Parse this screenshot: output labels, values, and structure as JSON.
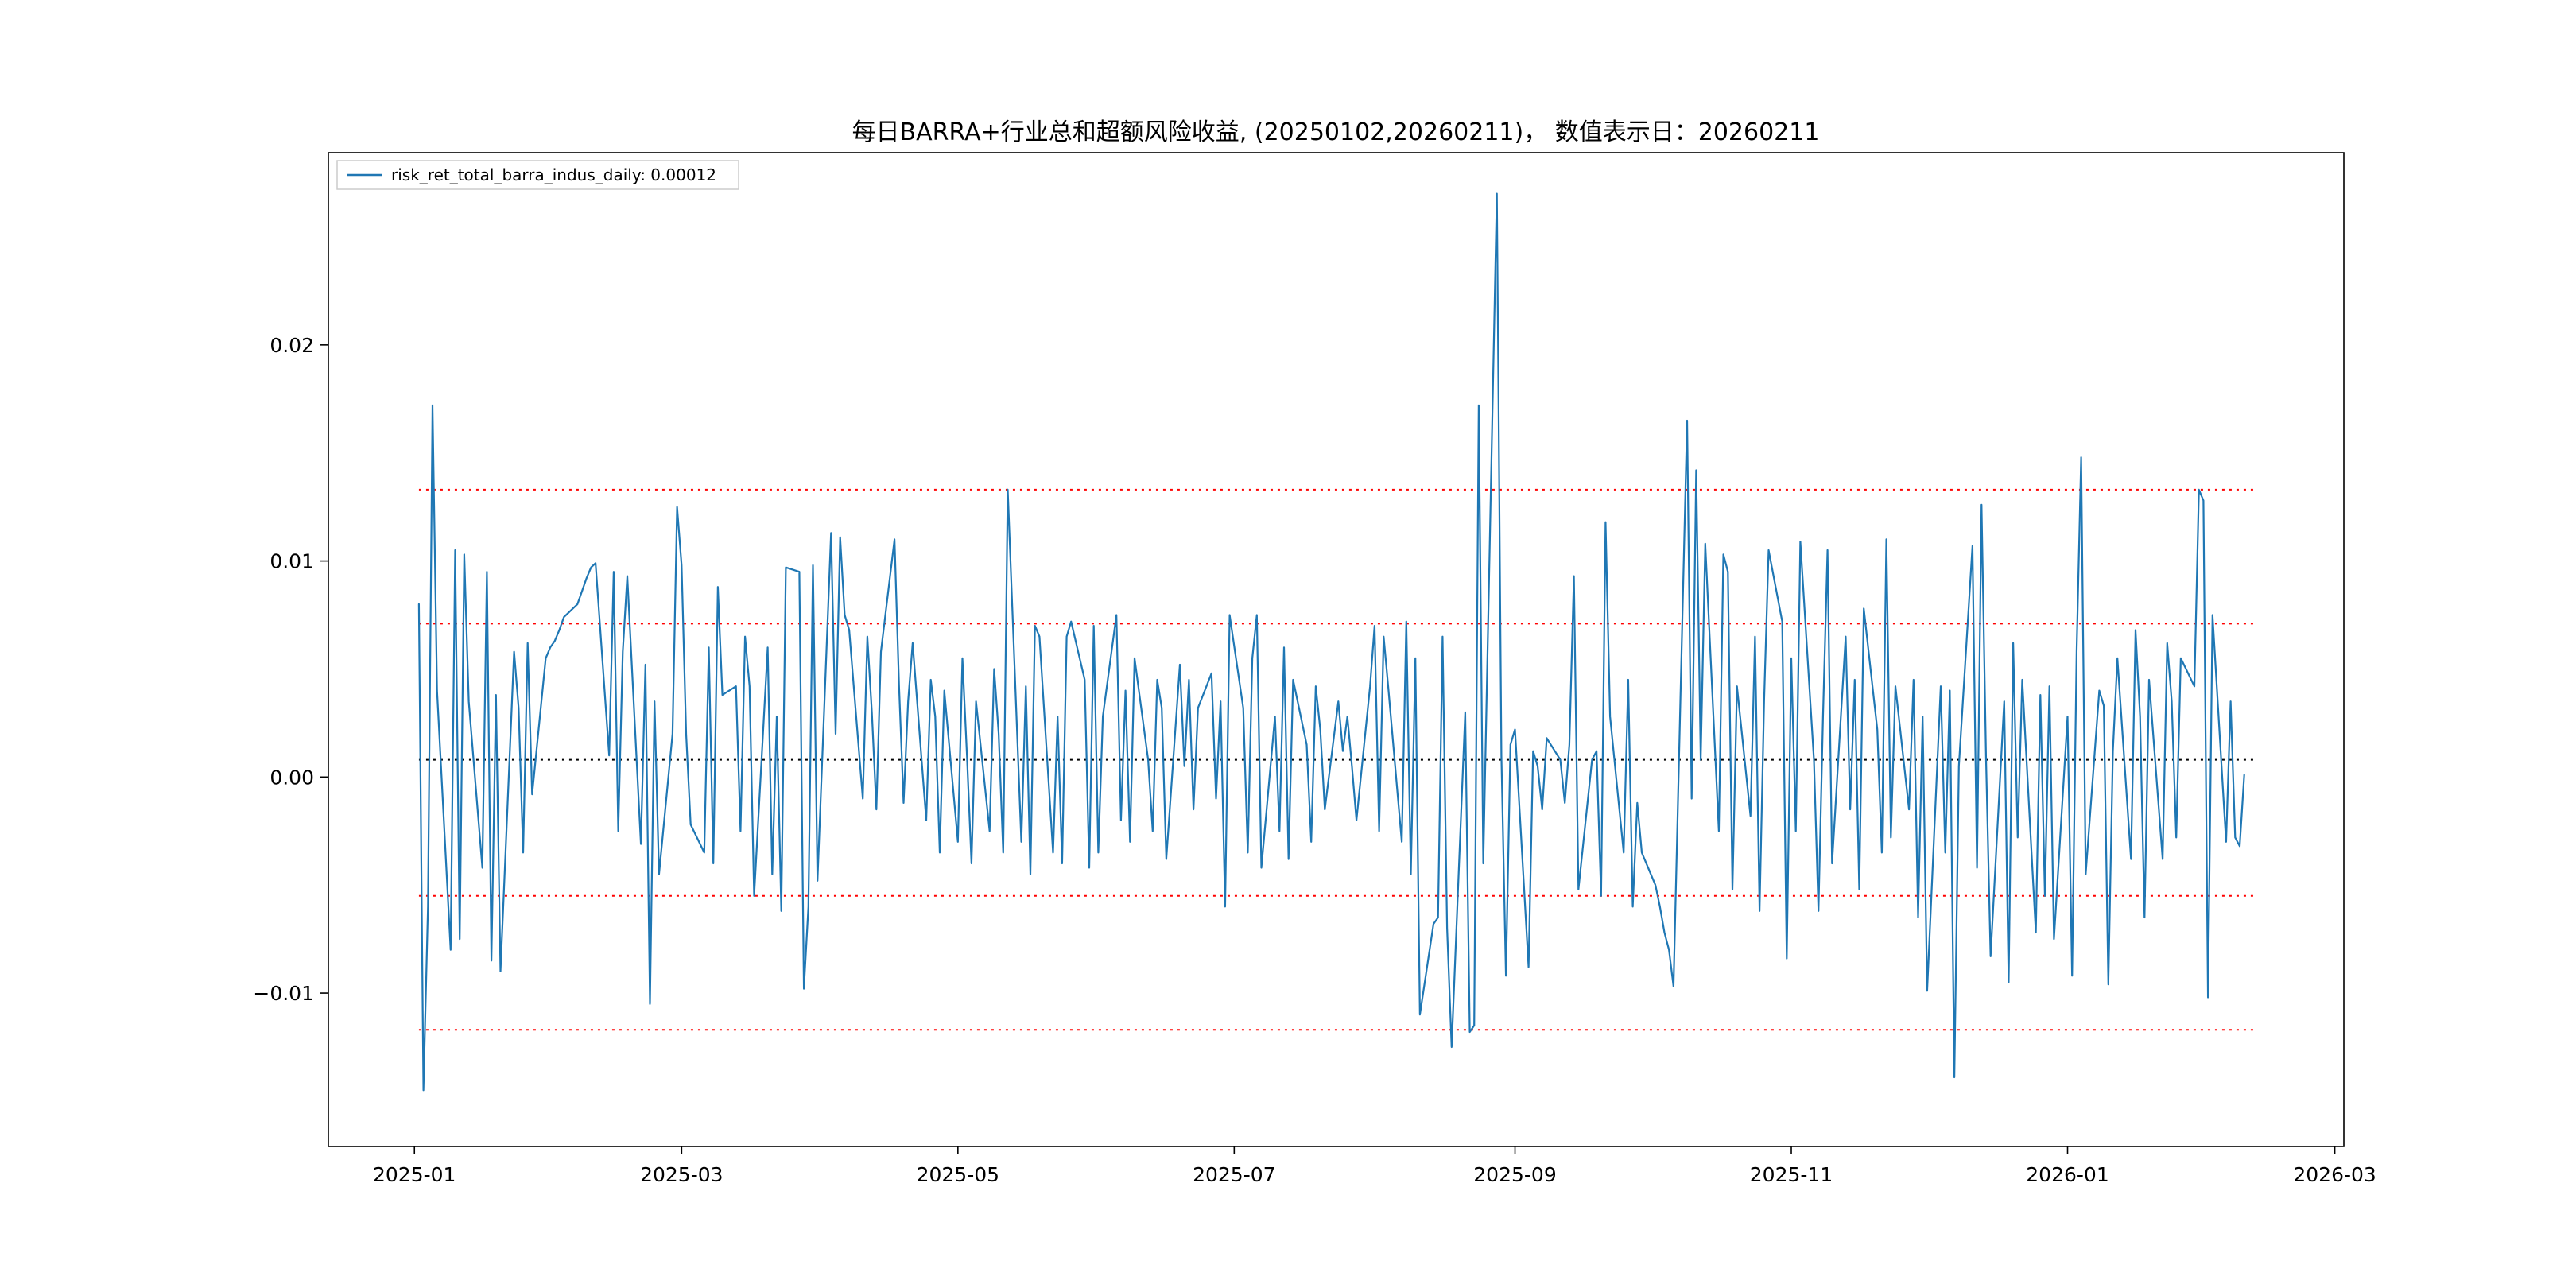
{
  "figure": {
    "background": "#ffffff"
  },
  "chart_data": {
    "type": "line",
    "title": "每日BARRA+行业总和超额风险收益, (20250102,20260211)，  数值表示日：20260211",
    "legend": [
      {
        "label": "risk_ret_total_barra_indus_daily: 0.00012",
        "color": "#1f77b4"
      }
    ],
    "x_axis": {
      "start_date": "2025-01-02",
      "end_date": "2026-02-11",
      "tick_labels": [
        "2025-01",
        "2025-03",
        "2025-05",
        "2025-07",
        "2025-09",
        "2025-11",
        "2026-01",
        "2026-03"
      ],
      "tick_days": [
        -1,
        58,
        119,
        180,
        242,
        303,
        364,
        423
      ],
      "domain_days": [
        -20,
        425
      ]
    },
    "y_axis": {
      "tick_labels": [
        "0.02",
        "0.01",
        "0.00",
        "−0.01"
      ],
      "tick_values": [
        0.02,
        0.01,
        0.0,
        -0.01
      ],
      "ylim": [
        -0.0171,
        0.0289
      ]
    },
    "reference_lines": {
      "red_dotted": [
        0.0133,
        0.0071,
        -0.0055,
        -0.0117
      ],
      "black_dotted": [
        0.0008
      ],
      "span_days": [
        0,
        405
      ],
      "red_color": "#ff0000",
      "black_color": "#000000"
    },
    "series": [
      {
        "name": "risk_ret_total_barra_indus_daily",
        "color": "#1f77b4",
        "last_value": 0.00012,
        "values": [
          0.008,
          -0.0145,
          -0.006,
          0.0172,
          0.004,
          -0.008,
          0.0105,
          -0.0075,
          0.0103,
          0.0035,
          -0.0042,
          0.0095,
          -0.0085,
          0.0038,
          -0.009,
          0.0058,
          0.0032,
          -0.0035,
          0.0062,
          -0.0008,
          0.0055,
          0.006,
          0.0063,
          0.0068,
          0.0074,
          0.008,
          0.0086,
          0.0092,
          0.0097,
          0.0099,
          0.001,
          0.0095,
          -0.0025,
          0.0058,
          0.0093,
          -0.0031,
          0.0052,
          -0.0105,
          0.0035,
          -0.0045,
          0.002,
          0.0125,
          0.0098,
          0.002,
          -0.0022,
          -0.0035,
          0.006,
          -0.004,
          0.0088,
          0.0038,
          0.0042,
          -0.0025,
          0.0065,
          0.0042,
          -0.0055,
          0.006,
          -0.0045,
          0.0028,
          -0.0062,
          0.0097,
          0.0095,
          -0.0098,
          -0.006,
          0.0098,
          -0.0048,
          0.0113,
          0.002,
          0.0111,
          0.0075,
          0.0068,
          -0.001,
          0.0065,
          0.003,
          -0.0015,
          0.0058,
          0.011,
          0.0042,
          -0.0012,
          0.0035,
          0.0062,
          -0.002,
          0.0045,
          0.0028,
          -0.0035,
          0.004,
          -0.003,
          0.0055,
          0.001,
          -0.004,
          0.0035,
          -0.0025,
          0.005,
          0.002,
          -0.0035,
          0.0133,
          -0.003,
          0.0042,
          -0.0045,
          0.007,
          0.0065,
          -0.0035,
          0.0028,
          -0.004,
          0.0065,
          0.0072,
          0.0045,
          -0.0042,
          0.007,
          -0.0035,
          0.0028,
          0.0075,
          -0.002,
          0.004,
          -0.003,
          0.0055,
          0.0008,
          -0.0025,
          0.0045,
          0.0032,
          -0.0038,
          0.0052,
          0.0005,
          0.0045,
          -0.0015,
          0.0032,
          0.0048,
          -0.001,
          0.0035,
          -0.006,
          0.0075,
          0.0032,
          -0.0035,
          0.0055,
          0.0075,
          -0.0042,
          0.0028,
          -0.0025,
          0.006,
          -0.0038,
          0.0045,
          0.0015,
          -0.003,
          0.0042,
          0.0022,
          -0.0015,
          0.0035,
          0.0012,
          0.0028,
          0.0005,
          -0.002,
          0.0042,
          0.007,
          -0.0025,
          0.0065,
          0.0042,
          -0.003,
          0.0072,
          -0.0045,
          0.0055,
          -0.011,
          -0.0068,
          -0.0065,
          0.0065,
          -0.007,
          -0.0125,
          0.003,
          -0.0118,
          -0.0115,
          0.0172,
          -0.004,
          0.027,
          0.001,
          -0.0092,
          0.0015,
          0.0022,
          -0.0088,
          0.0012,
          0.0005,
          -0.0015,
          0.0018,
          0.0008,
          -0.0012,
          0.0015,
          0.0093,
          -0.0052,
          0.0008,
          0.0012,
          -0.0055,
          0.0118,
          0.0028,
          -0.0035,
          0.0045,
          -0.006,
          -0.0012,
          -0.0035,
          -0.005,
          -0.006,
          -0.0072,
          -0.008,
          -0.0097,
          0.0165,
          -0.001,
          0.0142,
          0.0008,
          0.0108,
          -0.0025,
          0.0103,
          0.0095,
          -0.0052,
          0.0042,
          -0.0018,
          0.0065,
          -0.0062,
          0.0035,
          0.0105,
          0.0072,
          -0.0084,
          0.0055,
          -0.0025,
          0.0109,
          0.0008,
          -0.0062,
          0.0028,
          0.0105,
          -0.004,
          0.0065,
          -0.0015,
          0.0045,
          -0.0052,
          0.0078,
          0.0022,
          -0.0035,
          0.011,
          -0.0028,
          0.0042,
          -0.0015,
          0.0045,
          -0.0065,
          0.0028,
          -0.0099,
          0.0042,
          -0.0035,
          0.004,
          -0.0139,
          0.0005,
          0.0107,
          -0.0042,
          0.0126,
          0.0008,
          -0.0083,
          0.0035,
          -0.0095,
          0.0062,
          -0.0028,
          0.0045,
          -0.0072,
          0.0038,
          -0.0055,
          0.0042,
          -0.0075,
          0.0028,
          -0.0092,
          0.0058,
          0.0148,
          -0.0045,
          0.004,
          0.0033,
          -0.0096,
          0.0012,
          0.0055,
          -0.0038,
          0.0068,
          0.0028,
          -0.0065,
          0.0045,
          -0.0038,
          0.0062,
          0.0035,
          -0.0028,
          0.0055,
          0.0042,
          0.0133,
          0.0128,
          -0.0102,
          0.0075,
          -0.003,
          0.0035,
          -0.0028,
          -0.0032,
          0.0001
        ]
      }
    ]
  }
}
